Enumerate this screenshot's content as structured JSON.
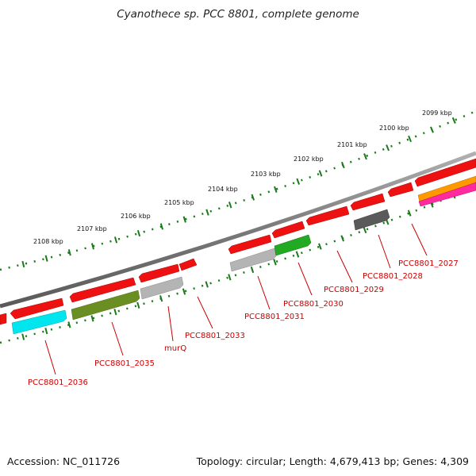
{
  "header": {
    "title": "Cyanothece sp. PCC 8801, complete genome"
  },
  "footer": {
    "accession": "Accession: NC_011726",
    "summary": "Topology: circular; Length: 4,679,413 bp; Genes: 4,309"
  },
  "colors": {
    "backbone": "#808080",
    "tick": "#1a7a1a",
    "gene_red": "#ee1111",
    "gene_gray": "#b4b4b4",
    "gene_dark": "#5a5a5a",
    "gene_olive": "#6b8e23",
    "gene_green": "#22aa22",
    "gene_cyan": "#00e5ee",
    "gene_orange": "#ff9900",
    "gene_pink": "#ff2aa0",
    "label": "#cc0000"
  },
  "scale_labels": [
    "2099 kbp",
    "2100 kbp",
    "2101 kbp",
    "2102 kbp",
    "2103 kbp",
    "2104 kbp",
    "2105 kbp",
    "2106 kbp",
    "2107 kbp",
    "2108 kbp"
  ],
  "gene_labels": [
    "PCC8801_2027",
    "PCC8801_2028",
    "PCC8801_2029",
    "PCC8801_2030",
    "PCC8801_2031",
    "PCC8801_2033",
    "murQ",
    "PCC8801_2035",
    "PCC8801_2036"
  ]
}
